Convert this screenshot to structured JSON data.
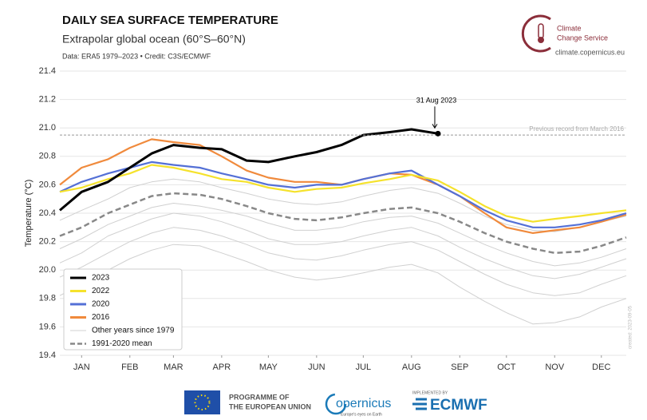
{
  "header": {
    "title": "DAILY SEA SURFACE TEMPERATURE",
    "subtitle": "Extrapolar global ocean (60°S–60°N)",
    "credit": "Data: ERA5 1979–2023 • Credit: C3S/ECMWF",
    "logo_text": [
      "Climate",
      "Change Service"
    ],
    "url": "climate.copernicus.eu"
  },
  "chart_data": {
    "type": "line",
    "y_label": "Temperature (°C)",
    "watermark": "created: 2023-09-05",
    "x": [
      1,
      15,
      32,
      46,
      60,
      74,
      91,
      105,
      121,
      135,
      152,
      166,
      182,
      196,
      213,
      227,
      244,
      258,
      274,
      288,
      305,
      319,
      335,
      349,
      365
    ],
    "xlim": [
      1,
      365
    ],
    "xticks": [
      {
        "value": 15,
        "label": "JAN"
      },
      {
        "value": 46,
        "label": "FEB"
      },
      {
        "value": 74,
        "label": "MAR"
      },
      {
        "value": 105,
        "label": "APR"
      },
      {
        "value": 135,
        "label": "MAY"
      },
      {
        "value": 166,
        "label": "JUN"
      },
      {
        "value": 196,
        "label": "JUL"
      },
      {
        "value": 227,
        "label": "AUG"
      },
      {
        "value": 258,
        "label": "SEP"
      },
      {
        "value": 288,
        "label": "OCT"
      },
      {
        "value": 319,
        "label": "NOV"
      },
      {
        "value": 349,
        "label": "DEC"
      }
    ],
    "ylim": [
      19.4,
      21.4
    ],
    "yticks": [
      19.4,
      19.6,
      19.8,
      {
        "value": 20,
        "label": "20.0"
      },
      20.2,
      20.4,
      20.6,
      20.8,
      {
        "value": 21,
        "label": "21.0"
      },
      21.2,
      21.4
    ],
    "grid": true,
    "other_years": {
      "name": "Other years since 1979",
      "color": "#d0d0d0",
      "series": [
        [
          19.95,
          20.02,
          20.12,
          20.2,
          20.26,
          20.3,
          20.28,
          20.24,
          20.18,
          20.12,
          20.08,
          20.07,
          20.1,
          20.14,
          20.18,
          20.2,
          20.14,
          20.06,
          19.97,
          19.9,
          19.84,
          19.82,
          19.84,
          19.9,
          19.96
        ],
        [
          20.15,
          20.22,
          20.32,
          20.38,
          20.44,
          20.47,
          20.45,
          20.42,
          20.38,
          20.33,
          20.28,
          20.28,
          20.3,
          20.34,
          20.37,
          20.38,
          20.33,
          20.26,
          20.18,
          20.12,
          20.06,
          20.03,
          20.05,
          20.09,
          20.15
        ],
        [
          20.35,
          20.42,
          20.5,
          20.58,
          20.62,
          20.64,
          20.62,
          20.58,
          20.54,
          20.5,
          20.47,
          20.46,
          20.48,
          20.52,
          20.56,
          20.58,
          20.54,
          20.47,
          20.38,
          20.32,
          20.28,
          20.27,
          20.3,
          20.34,
          20.38
        ],
        [
          19.82,
          19.9,
          20,
          20.08,
          20.14,
          20.18,
          20.17,
          20.12,
          20.06,
          20,
          19.95,
          19.93,
          19.95,
          19.98,
          20.02,
          20.04,
          19.98,
          19.88,
          19.78,
          19.7,
          19.62,
          19.63,
          19.67,
          19.74,
          19.8
        ],
        [
          20.05,
          20.12,
          20.24,
          20.3,
          20.36,
          20.4,
          20.38,
          20.34,
          20.28,
          20.22,
          20.18,
          20.18,
          20.2,
          20.24,
          20.28,
          20.3,
          20.24,
          20.16,
          20.08,
          20.02,
          19.96,
          19.94,
          19.97,
          20.02,
          20.08
        ]
      ]
    },
    "mean": {
      "name": "1991-2020 mean",
      "color": "#888888",
      "values": [
        20.24,
        20.3,
        20.4,
        20.46,
        20.52,
        20.54,
        20.53,
        20.5,
        20.45,
        20.4,
        20.36,
        20.35,
        20.37,
        20.4,
        20.43,
        20.44,
        20.4,
        20.34,
        20.26,
        20.2,
        20.15,
        20.12,
        20.13,
        20.17,
        20.23
      ]
    },
    "series": [
      {
        "name": "2016",
        "color": "#f08a3c",
        "values": [
          20.6,
          20.72,
          20.78,
          20.86,
          20.92,
          20.9,
          20.88,
          20.8,
          20.7,
          20.65,
          20.62,
          20.62,
          20.6,
          20.64,
          20.68,
          20.67,
          20.6,
          20.52,
          20.4,
          20.3,
          20.26,
          20.28,
          20.3,
          20.34,
          20.39
        ]
      },
      {
        "name": "2020",
        "color": "#5470d6",
        "values": [
          20.55,
          20.62,
          20.68,
          20.72,
          20.76,
          20.74,
          20.72,
          20.68,
          20.64,
          20.6,
          20.58,
          20.6,
          20.6,
          20.64,
          20.68,
          20.7,
          20.6,
          20.52,
          20.42,
          20.35,
          20.3,
          20.3,
          20.32,
          20.35,
          20.4
        ]
      },
      {
        "name": "2022",
        "color": "#f5e22c",
        "values": [
          20.55,
          20.58,
          20.64,
          20.68,
          20.74,
          20.72,
          20.68,
          20.64,
          20.62,
          20.58,
          20.55,
          20.57,
          20.58,
          20.61,
          20.64,
          20.67,
          20.63,
          20.55,
          20.45,
          20.38,
          20.34,
          20.36,
          20.38,
          20.4,
          20.42
        ]
      },
      {
        "name": "2023",
        "color": "#000000",
        "values": [
          20.42,
          20.55,
          20.62,
          20.72,
          20.82,
          20.88,
          20.86,
          20.85,
          20.77,
          20.76,
          20.8,
          20.83,
          20.88,
          20.95,
          20.97,
          20.99,
          20.96,
          null,
          null,
          null,
          null,
          null,
          null,
          null,
          null
        ]
      }
    ],
    "record": {
      "label": "Previous record from March 2016",
      "value": 20.95
    },
    "annotation": {
      "text": "31 Aug 2023",
      "x": 244,
      "y": 20.96
    }
  },
  "footer": {
    "eu": [
      "PROGRAMME OF",
      "THE EUROPEAN UNION"
    ],
    "copernicus": "opernicus",
    "copernicus_tag": "Europe's eyes on Earth",
    "implemented": "IMPLEMENTED BY",
    "ecmwf": "ECMWF"
  }
}
